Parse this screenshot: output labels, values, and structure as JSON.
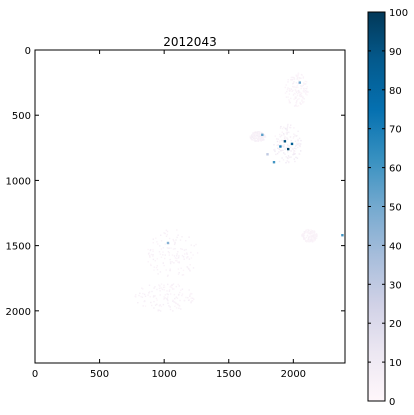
{
  "chart_data": {
    "type": "heatmap",
    "title": "2012043",
    "xlabel": "",
    "ylabel": "",
    "xlim": [
      0,
      2400
    ],
    "ylim": [
      2400,
      0
    ],
    "x_ticks": [
      0,
      500,
      1000,
      1500,
      2000
    ],
    "y_ticks": [
      0,
      500,
      1000,
      1500,
      2000
    ],
    "grid": false,
    "colorbar": {
      "range": [
        0,
        100
      ],
      "ticks": [
        0,
        10,
        20,
        30,
        40,
        50,
        60,
        70,
        80,
        90,
        100
      ],
      "colormap": "PuBu",
      "stops": [
        "#fff7fb",
        "#ece7f2",
        "#d0d1e6",
        "#a6bddb",
        "#74a9cf",
        "#3690c0",
        "#0570b0",
        "#045a8d",
        "#023858"
      ]
    },
    "regions": [
      {
        "x": 1950,
        "y": 720,
        "rx": 110,
        "ry": 160,
        "level": 8
      },
      {
        "x": 1720,
        "y": 660,
        "rx": 60,
        "ry": 40,
        "level": 6
      },
      {
        "x": 2020,
        "y": 300,
        "rx": 90,
        "ry": 130,
        "level": 4
      },
      {
        "x": 1060,
        "y": 1560,
        "rx": 200,
        "ry": 190,
        "level": 5
      },
      {
        "x": 1000,
        "y": 1890,
        "rx": 230,
        "ry": 110,
        "level": 5
      },
      {
        "x": 2120,
        "y": 1420,
        "rx": 60,
        "ry": 50,
        "level": 4
      }
    ],
    "hotspots": [
      {
        "x": 1935,
        "y": 700,
        "value": 90
      },
      {
        "x": 1960,
        "y": 760,
        "value": 95
      },
      {
        "x": 1900,
        "y": 740,
        "value": 70
      },
      {
        "x": 1850,
        "y": 860,
        "value": 60
      },
      {
        "x": 1760,
        "y": 650,
        "value": 55
      },
      {
        "x": 2050,
        "y": 250,
        "value": 50
      },
      {
        "x": 1030,
        "y": 1480,
        "value": 45
      },
      {
        "x": 2380,
        "y": 1420,
        "value": 60
      },
      {
        "x": 1800,
        "y": 800,
        "value": 30
      },
      {
        "x": 1990,
        "y": 720,
        "value": 85
      }
    ]
  }
}
